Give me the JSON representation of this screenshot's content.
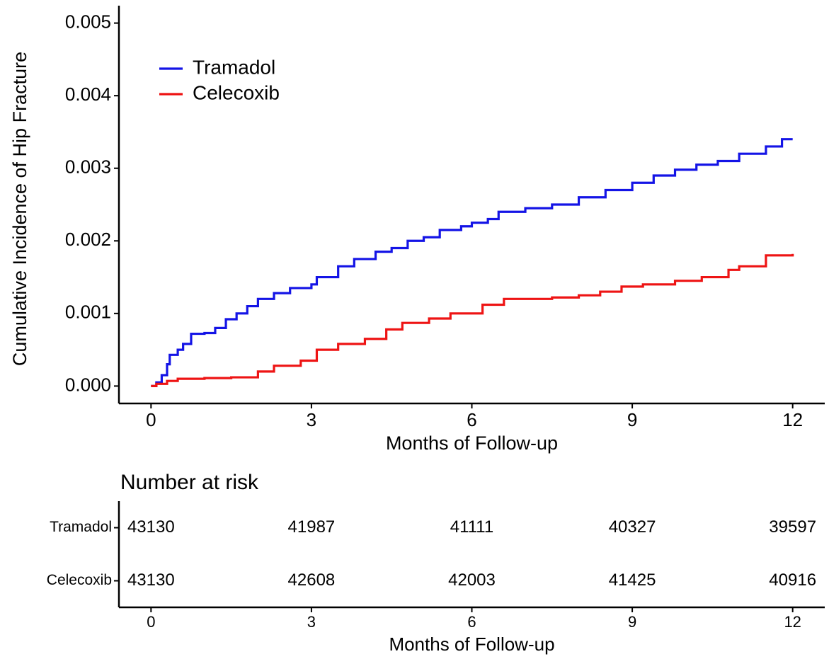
{
  "chart_data": [
    {
      "type": "line",
      "step": true,
      "ylabel": "Cumulative Incidence of Hip Fracture",
      "xlabel": "Months of Follow-up",
      "xlim": [
        -0.6,
        12.6
      ],
      "xticks": [
        0,
        3,
        6,
        9,
        12
      ],
      "ylim": [
        -0.00024,
        0.00524
      ],
      "yticks": [
        {
          "value": 0,
          "label": "0.000"
        },
        {
          "value": 0.001,
          "label": "0.001"
        },
        {
          "value": 0.002,
          "label": "0.002"
        },
        {
          "value": 0.003,
          "label": "0.003"
        },
        {
          "value": 0.004,
          "label": "0.004"
        },
        {
          "value": 0.005,
          "label": "0.005"
        }
      ],
      "grid": false,
      "legend": "top-left",
      "series": [
        {
          "name": "Tramadol",
          "color": "#1414e6",
          "x": [
            0,
            0.1,
            0.2,
            0.3,
            0.35,
            0.5,
            0.6,
            0.75,
            1.0,
            1.2,
            1.4,
            1.6,
            1.8,
            2.0,
            2.3,
            2.6,
            3.0,
            3.1,
            3.5,
            3.8,
            4.2,
            4.5,
            4.8,
            5.1,
            5.4,
            5.8,
            6.0,
            6.3,
            6.5,
            7.0,
            7.5,
            8.0,
            8.5,
            9.0,
            9.4,
            9.8,
            10.2,
            10.6,
            11.0,
            11.5,
            11.8,
            12.0
          ],
          "values": [
            0,
            5e-05,
            0.00015,
            0.0003,
            0.00043,
            0.0005,
            0.00058,
            0.00072,
            0.00073,
            0.0008,
            0.00092,
            0.001,
            0.0011,
            0.0012,
            0.00128,
            0.00135,
            0.0014,
            0.0015,
            0.00165,
            0.00175,
            0.00185,
            0.0019,
            0.002,
            0.00205,
            0.00215,
            0.0022,
            0.00225,
            0.0023,
            0.0024,
            0.00245,
            0.0025,
            0.0026,
            0.0027,
            0.0028,
            0.0029,
            0.00298,
            0.00305,
            0.0031,
            0.0032,
            0.0033,
            0.0034,
            0.0034
          ]
        },
        {
          "name": "Celecoxib",
          "color": "#ee1414",
          "x": [
            0,
            0.1,
            0.3,
            0.5,
            1.0,
            1.5,
            2.0,
            2.3,
            2.8,
            3.1,
            3.5,
            4.0,
            4.4,
            4.7,
            5.2,
            5.6,
            6.2,
            6.6,
            7.5,
            8.0,
            8.4,
            8.8,
            9.2,
            9.8,
            10.3,
            10.8,
            11.0,
            11.5,
            12.0
          ],
          "values": [
            0,
            3e-05,
            7e-05,
            0.0001,
            0.00011,
            0.00012,
            0.0002,
            0.00028,
            0.00035,
            0.0005,
            0.00058,
            0.00065,
            0.00078,
            0.00087,
            0.00093,
            0.001,
            0.00112,
            0.0012,
            0.00122,
            0.00125,
            0.0013,
            0.00137,
            0.0014,
            0.00145,
            0.0015,
            0.0016,
            0.00165,
            0.0018,
            0.00182
          ]
        }
      ]
    },
    {
      "type": "risk-table",
      "title": "Number at risk",
      "xlabel": "Months of Follow-up",
      "xlim": [
        -0.6,
        12.6
      ],
      "xticks": [
        0,
        3,
        6,
        9,
        12
      ],
      "x": [
        0,
        3,
        6,
        9,
        12
      ],
      "series": [
        {
          "name": "Tramadol",
          "values": [
            43130,
            41987,
            41111,
            40327,
            39597
          ]
        },
        {
          "name": "Celecoxib",
          "values": [
            43130,
            42608,
            42003,
            41425,
            40916
          ]
        }
      ]
    }
  ]
}
